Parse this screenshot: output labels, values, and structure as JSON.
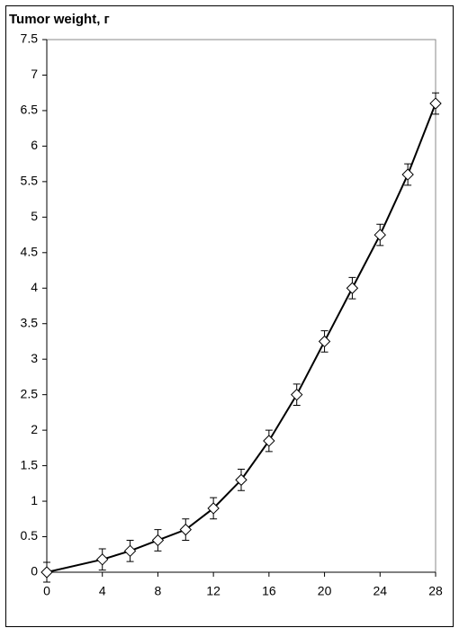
{
  "chart_data": {
    "type": "line",
    "title": "Tumor weight, г",
    "x": [
      0,
      4,
      6,
      8,
      10,
      12,
      14,
      16,
      18,
      20,
      22,
      24,
      26,
      28
    ],
    "values": [
      0,
      0.18,
      0.3,
      0.45,
      0.6,
      0.9,
      1.3,
      1.85,
      2.5,
      3.25,
      4.0,
      4.75,
      5.6,
      6.6
    ],
    "errors": [
      0.14,
      0.15,
      0.15,
      0.15,
      0.15,
      0.15,
      0.15,
      0.15,
      0.15,
      0.15,
      0.15,
      0.15,
      0.15,
      0.15
    ],
    "color": "#000000",
    "xlim": [
      0,
      28
    ],
    "xticks": [
      0,
      4,
      8,
      12,
      16,
      20,
      24,
      28
    ],
    "ylim": [
      0,
      7.5
    ],
    "yticks": [
      0,
      0.5,
      1,
      1.5,
      2,
      2.5,
      3,
      3.5,
      4,
      4.5,
      5,
      5.5,
      6,
      6.5,
      7,
      7.5
    ]
  }
}
